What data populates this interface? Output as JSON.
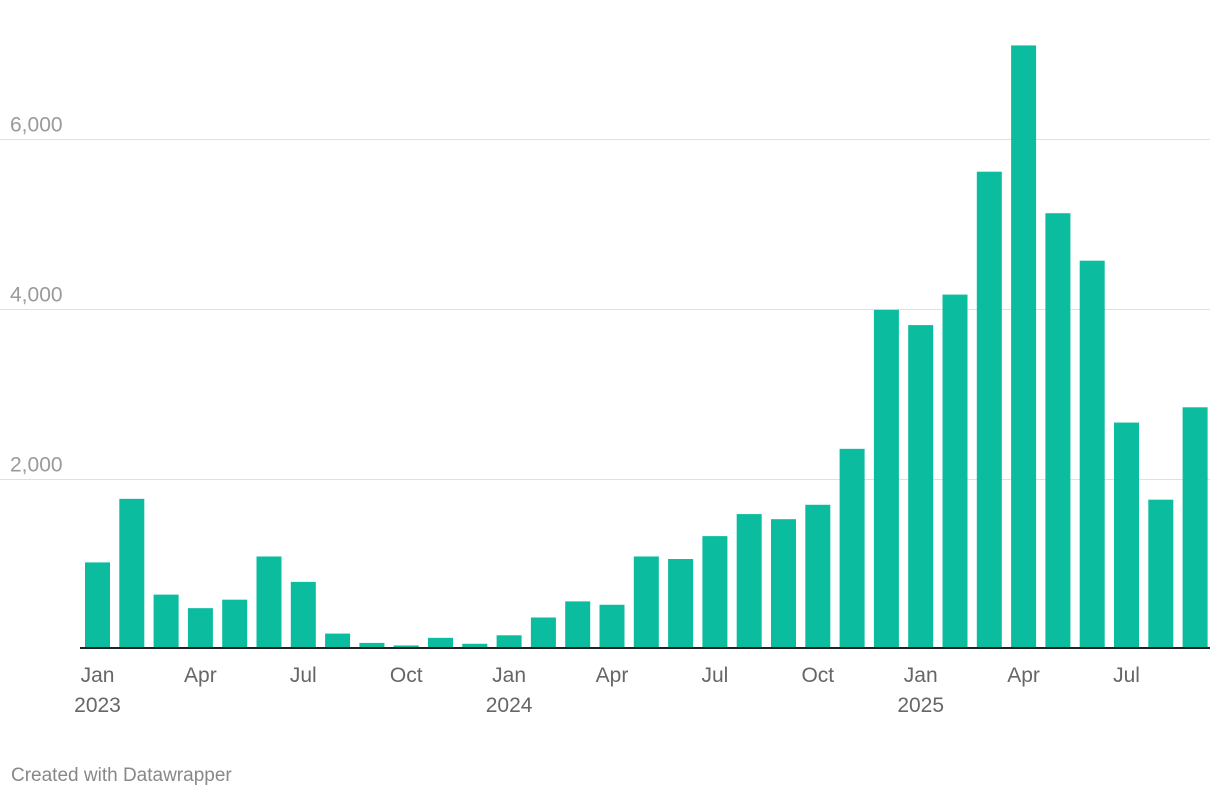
{
  "chart_data": {
    "type": "bar",
    "title": "",
    "xlabel": "",
    "ylabel": "",
    "ylim": [
      0,
      7200
    ],
    "yticks": [
      {
        "value": 2000,
        "label": "2,000"
      },
      {
        "value": 4000,
        "label": "4,000"
      },
      {
        "value": 6000,
        "label": "6,000"
      }
    ],
    "grid": true,
    "bar_color": "#0bbc9f",
    "categories": [
      "Jan 2023",
      "Feb 2023",
      "Mar 2023",
      "Apr 2023",
      "May 2023",
      "Jun 2023",
      "Jul 2023",
      "Aug 2023",
      "Sep 2023",
      "Oct 2023",
      "Nov 2023",
      "Dec 2023",
      "Jan 2024",
      "Feb 2024",
      "Mar 2024",
      "Apr 2024",
      "May 2024",
      "Jun 2024",
      "Jul 2024",
      "Aug 2024",
      "Sep 2024",
      "Oct 2024",
      "Nov 2024",
      "Dec 2024",
      "Jan 2025",
      "Feb 2025",
      "Mar 2025",
      "Apr 2025",
      "May 2025",
      "Jun 2025",
      "Jul 2025",
      "Aug 2025",
      "Sep 2025"
    ],
    "values": [
      1010,
      1760,
      630,
      470,
      570,
      1080,
      780,
      170,
      60,
      30,
      120,
      50,
      150,
      360,
      550,
      510,
      1080,
      1050,
      1320,
      1580,
      1520,
      1690,
      2350,
      3990,
      3810,
      4170,
      5620,
      7110,
      5130,
      4570,
      2660,
      1750,
      2840
    ],
    "xticks": [
      {
        "index": 0,
        "label": "Jan",
        "year": "2023"
      },
      {
        "index": 3,
        "label": "Apr",
        "year": ""
      },
      {
        "index": 6,
        "label": "Jul",
        "year": ""
      },
      {
        "index": 9,
        "label": "Oct",
        "year": ""
      },
      {
        "index": 12,
        "label": "Jan",
        "year": "2024"
      },
      {
        "index": 15,
        "label": "Apr",
        "year": ""
      },
      {
        "index": 18,
        "label": "Jul",
        "year": ""
      },
      {
        "index": 21,
        "label": "Oct",
        "year": ""
      },
      {
        "index": 24,
        "label": "Jan",
        "year": "2025"
      },
      {
        "index": 27,
        "label": "Apr",
        "year": ""
      },
      {
        "index": 30,
        "label": "Jul",
        "year": ""
      }
    ]
  },
  "footer": {
    "credit": "Created with Datawrapper"
  }
}
